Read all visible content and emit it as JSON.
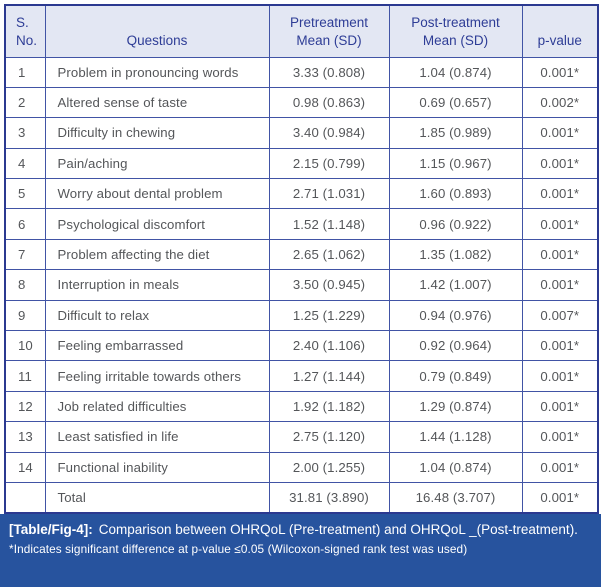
{
  "table": {
    "headers": [
      "S.\nNo.",
      "Questions",
      "Pretreatment\nMean (SD)",
      "Post-treatment\nMean (SD)",
      "p-value"
    ],
    "rows": [
      {
        "no": "1",
        "question": "Problem in pronouncing words",
        "pre": "3.33 (0.808)",
        "post": "1.04 (0.874)",
        "p": "0.001*"
      },
      {
        "no": "2",
        "question": "Altered sense of taste",
        "pre": "0.98 (0.863)",
        "post": "0.69 (0.657)",
        "p": "0.002*"
      },
      {
        "no": "3",
        "question": "Difficulty in chewing",
        "pre": "3.40 (0.984)",
        "post": "1.85 (0.989)",
        "p": "0.001*"
      },
      {
        "no": "4",
        "question": "Pain/aching",
        "pre": "2.15 (0.799)",
        "post": "1.15 (0.967)",
        "p": "0.001*"
      },
      {
        "no": "5",
        "question": "Worry about dental problem",
        "pre": "2.71 (1.031)",
        "post": "1.60 (0.893)",
        "p": "0.001*"
      },
      {
        "no": "6",
        "question": "Psychological discomfort",
        "pre": "1.52 (1.148)",
        "post": "0.96 (0.922)",
        "p": "0.001*"
      },
      {
        "no": "7",
        "question": "Problem affecting the diet",
        "pre": "2.65 (1.062)",
        "post": "1.35 (1.082)",
        "p": "0.001*"
      },
      {
        "no": "8",
        "question": "Interruption in meals",
        "pre": "3.50 (0.945)",
        "post": "1.42 (1.007)",
        "p": "0.001*"
      },
      {
        "no": "9",
        "question": "Difficult to relax",
        "pre": "1.25 (1.229)",
        "post": "0.94 (0.976)",
        "p": "0.007*"
      },
      {
        "no": "10",
        "question": "Feeling embarrassed",
        "pre": "2.40 (1.106)",
        "post": "0.92 (0.964)",
        "p": "0.001*"
      },
      {
        "no": "11",
        "question": "Feeling irritable towards others",
        "pre": "1.27 (1.144)",
        "post": "0.79 (0.849)",
        "p": "0.001*"
      },
      {
        "no": "12",
        "question": "Job related difficulties",
        "pre": "1.92 (1.182)",
        "post": "1.29 (0.874)",
        "p": "0.001*"
      },
      {
        "no": "13",
        "question": "Least satisfied in life",
        "pre": "2.75 (1.120)",
        "post": "1.44 (1.128)",
        "p": "0.001*"
      },
      {
        "no": "14",
        "question": "Functional inability",
        "pre": "2.00 (1.255)",
        "post": "1.04 (0.874)",
        "p": "0.001*"
      },
      {
        "no": "",
        "question": "Total",
        "pre": "31.81 (3.890)",
        "post": "16.48 (3.707)",
        "p": "0.001*"
      }
    ]
  },
  "caption": {
    "label": "[Table/Fig-4]:",
    "text": "Comparison between OHRQoL (Pre-treatment) and OHRQoL _(Post-treatment).",
    "footnote": "*Indicates significant difference at p-value ≤0.05 (Wilcoxon-signed rank test was used)"
  },
  "colors": {
    "outer_border": "#2b3990",
    "grid_border": "#4154a5",
    "header_bg": "#e3e7f3",
    "header_text": "#2e3d96",
    "body_text": "#545659",
    "caption_bg": "#27539e",
    "caption_text": "#ffffff"
  }
}
